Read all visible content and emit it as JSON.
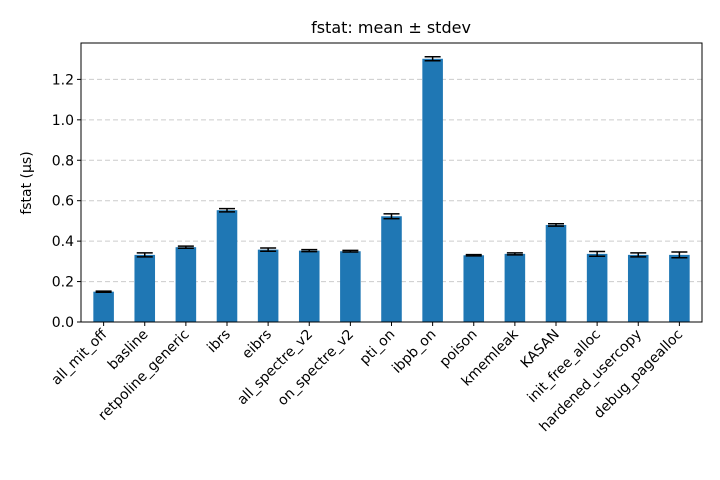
{
  "chart_data": {
    "type": "bar",
    "title": "fstat: mean ± stdev",
    "xlabel": "",
    "ylabel": "fstat (µs)",
    "ylim": [
      0,
      1.38
    ],
    "yticks": [
      0.0,
      0.2,
      0.4,
      0.6,
      0.8,
      1.0,
      1.2
    ],
    "ytick_labels": [
      "0.0",
      "0.2",
      "0.4",
      "0.6",
      "0.8",
      "1.0",
      "1.2"
    ],
    "grid": "y-dashed",
    "bar_color": "#1f77b4",
    "error_color": "#000000",
    "categories": [
      "all_mit_off",
      "basline",
      "retpoline_generic",
      "ibrs",
      "eibrs",
      "all_spectre_v2",
      "on_spectre_v2",
      "pti_on",
      "ibpb_on",
      "poison",
      "kmemleak",
      "KASAN",
      "init_free_alloc",
      "hardened_usercopy",
      "debug_pagealloc"
    ],
    "values": [
      0.15,
      0.332,
      0.37,
      0.553,
      0.358,
      0.353,
      0.35,
      0.523,
      1.302,
      0.33,
      0.337,
      0.48,
      0.337,
      0.332,
      0.332
    ],
    "errors": [
      0.003,
      0.01,
      0.005,
      0.008,
      0.008,
      0.005,
      0.004,
      0.012,
      0.01,
      0.003,
      0.005,
      0.006,
      0.012,
      0.01,
      0.014
    ]
  }
}
